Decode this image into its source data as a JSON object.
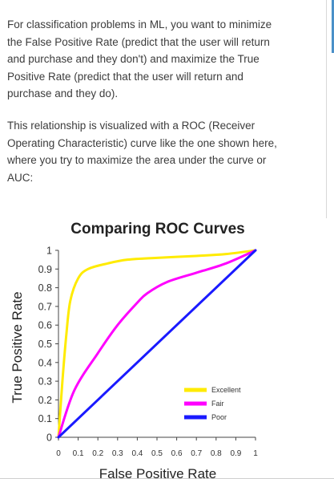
{
  "article": {
    "paragraph_1": "For classification problems in ML, you want to minimize the False Positive Rate (predict that the user will return and purchase and they don't) and maximize the True Positive Rate (predict that the user will return and purchase and they do).",
    "paragraph_2": "This relationship is visualized with a ROC (Receiver Operating Characteristic) curve like the one shown here, where you try to maximize the area under the curve or AUC:"
  },
  "chart_data": {
    "type": "line",
    "title": "Comparing ROC Curves",
    "xlabel": "False Positive Rate",
    "ylabel": "True Positive Rate",
    "xlim": [
      0,
      1
    ],
    "ylim": [
      0,
      1
    ],
    "x_ticks": [
      "0",
      "0.1",
      "0.2",
      "0.3",
      "0.4",
      "0.5",
      "0.6",
      "0.7",
      "0.8",
      "0.9",
      "1"
    ],
    "y_ticks": [
      "0",
      "0.1",
      "0.2",
      "0.3",
      "0.4",
      "0.5",
      "0.6",
      "0.7",
      "0.8",
      "0.9",
      "1"
    ],
    "grid": false,
    "legend_position": "bottom-right",
    "series": [
      {
        "name": "Excellent",
        "color": "#ffeb00",
        "points": [
          [
            0,
            0
          ],
          [
            0.02,
            0.3
          ],
          [
            0.04,
            0.55
          ],
          [
            0.06,
            0.73
          ],
          [
            0.1,
            0.85
          ],
          [
            0.15,
            0.9
          ],
          [
            0.25,
            0.93
          ],
          [
            0.35,
            0.95
          ],
          [
            0.5,
            0.96
          ],
          [
            0.7,
            0.97
          ],
          [
            0.85,
            0.98
          ],
          [
            1,
            1
          ]
        ]
      },
      {
        "name": "Fair",
        "color": "#ff00ff",
        "points": [
          [
            0,
            0
          ],
          [
            0.08,
            0.25
          ],
          [
            0.2,
            0.45
          ],
          [
            0.3,
            0.6
          ],
          [
            0.4,
            0.72
          ],
          [
            0.45,
            0.77
          ],
          [
            0.55,
            0.83
          ],
          [
            0.7,
            0.88
          ],
          [
            0.85,
            0.93
          ],
          [
            1,
            1
          ]
        ]
      },
      {
        "name": "Poor",
        "color": "#1a1aff",
        "points": [
          [
            0,
            0
          ],
          [
            1,
            1
          ]
        ]
      }
    ]
  }
}
